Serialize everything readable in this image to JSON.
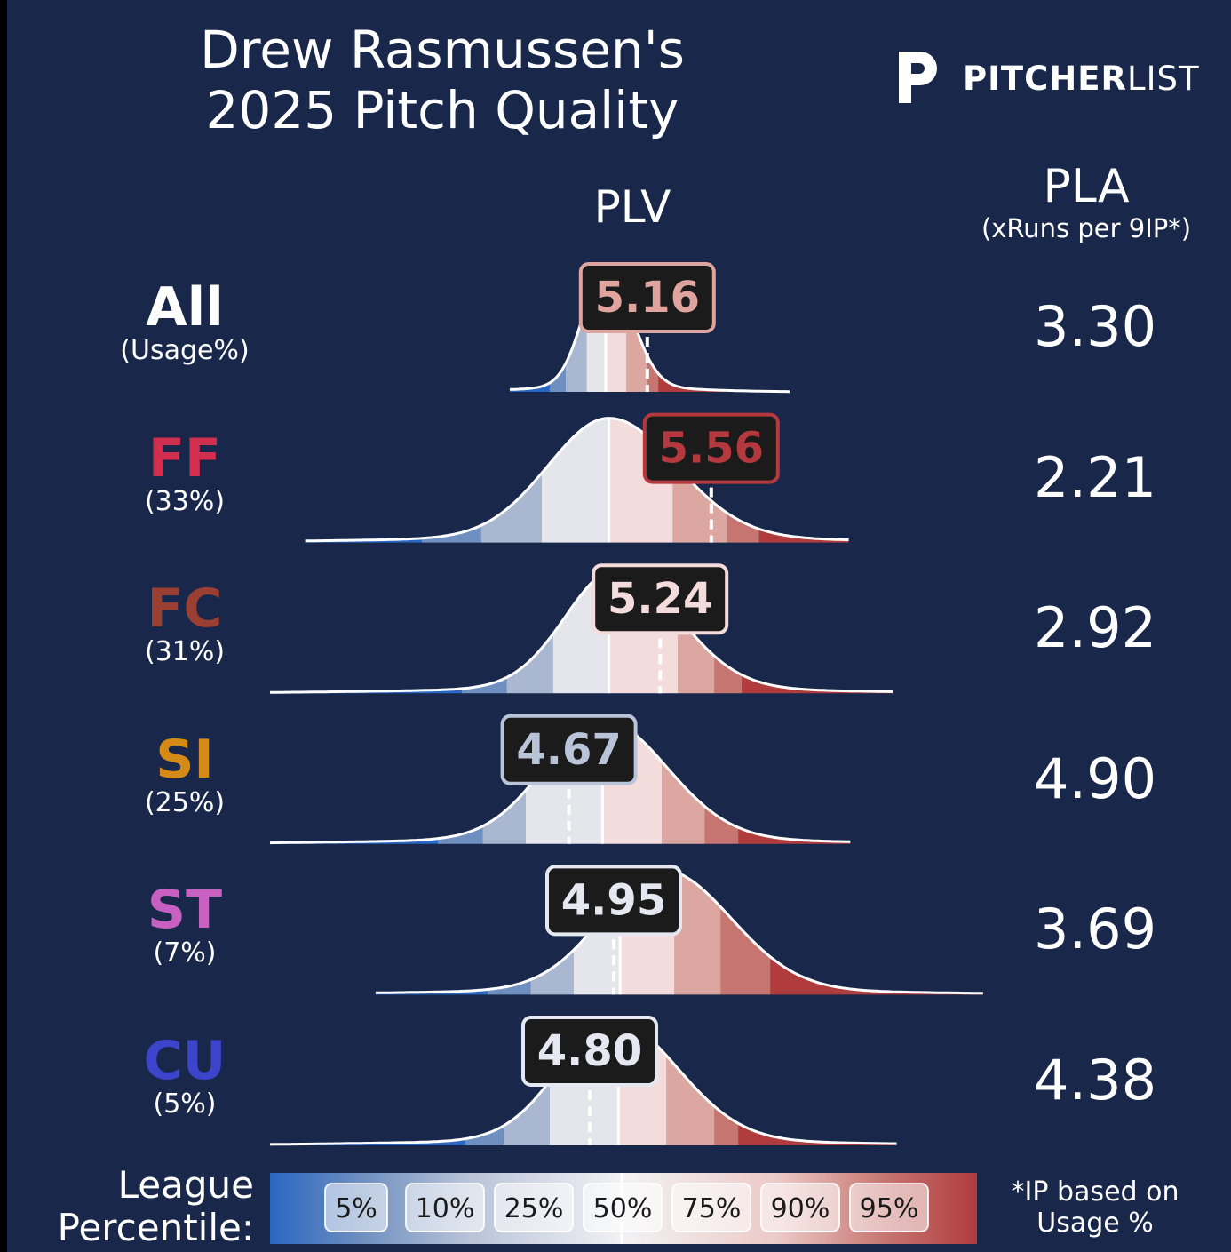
{
  "chart_data": {
    "type": "area",
    "title": "Drew Rasmussen's\n2025 Pitch Quality",
    "title_line1": "Drew Rasmussen's",
    "title_line2": "2025 Pitch Quality",
    "column_headers": {
      "plv": "PLV",
      "pla": "PLA",
      "pla_sub": "(xRuns per 9IP*)"
    },
    "rows": [
      {
        "pitch": "All",
        "usage": "(Usage%)",
        "plv": 5.16,
        "plv_label": "5.16",
        "pla": "3.30",
        "color": "#ffffff",
        "badge_color": "#e0a49f",
        "dist": {
          "start": 4.3,
          "end": 6.05,
          "mean": 4.9,
          "sd": 0.16,
          "peak_sd": 0.14,
          "pct": [
            4.55,
            4.65,
            4.78,
            4.9,
            5.03,
            5.16,
            5.23
          ]
        }
      },
      {
        "pitch": "FF",
        "usage": "(33%)",
        "plv": 5.56,
        "plv_label": "5.56",
        "pla": "2.21",
        "color": "#d22e4f",
        "badge_color": "#b4393f",
        "dist": {
          "start": 3.02,
          "end": 6.42,
          "mean": 4.92,
          "sd": 0.42,
          "peak_sd": 0.38,
          "pct": [
            3.75,
            4.12,
            4.5,
            4.92,
            5.32,
            5.66,
            5.86
          ]
        }
      },
      {
        "pitch": "FC",
        "usage": "(31%)",
        "plv": 5.24,
        "plv_label": "5.24",
        "pla": "2.92",
        "color": "#9a3f32",
        "badge_color": "#f5dcdc",
        "dist": {
          "start": 2.8,
          "end": 6.7,
          "mean": 4.97,
          "sd": 0.38,
          "peak_sd": 0.32,
          "pct": [
            4.0,
            4.28,
            4.57,
            4.92,
            5.35,
            5.58,
            5.75
          ]
        }
      },
      {
        "pitch": "SI",
        "usage": "(25%)",
        "plv": 4.67,
        "plv_label": "4.67",
        "pla": "4.90",
        "color": "#d58a17",
        "badge_color": "#b9c4d8",
        "dist": {
          "start": 2.8,
          "end": 6.43,
          "mean": 4.88,
          "sd": 0.4,
          "peak_sd": 0.36,
          "pct": [
            3.85,
            4.13,
            4.4,
            4.88,
            5.25,
            5.52,
            5.73
          ]
        }
      },
      {
        "pitch": "ST",
        "usage": "(7%)",
        "plv": 4.95,
        "plv_label": "4.95",
        "pla": "3.69",
        "color": "#c760c0",
        "badge_color": "#e5e8f0",
        "dist": {
          "start": 3.46,
          "end": 7.26,
          "mean": 5.26,
          "sd": 0.42,
          "peak_sd": 0.38,
          "pct": [
            4.16,
            4.43,
            4.7,
            4.99,
            5.33,
            5.62,
            5.93
          ]
        }
      },
      {
        "pitch": "CU",
        "usage": "(5%)",
        "plv": 4.8,
        "plv_label": "4.80",
        "pla": "4.38",
        "color": "#3c44cc",
        "badge_color": "#e5e8f0",
        "dist": {
          "start": 2.8,
          "end": 6.72,
          "mean": 4.95,
          "sd": 0.4,
          "peak_sd": 0.34,
          "pct": [
            4.02,
            4.26,
            4.55,
            4.98,
            5.28,
            5.58,
            5.73
          ]
        }
      }
    ],
    "legend": {
      "title_line1": "League",
      "title_line2": "Percentile:",
      "percentiles": [
        "5%",
        "10%",
        "25%",
        "50%",
        "75%",
        "90%",
        "95%"
      ]
    },
    "footnote_line1": "*IP based on",
    "footnote_line2": "Usage %",
    "brand": {
      "bold": "PITCHER",
      "light": "LIST"
    },
    "band_colors": [
      "#2a67c2",
      "#6f8fc0",
      "#a9b7d1",
      "#e4e6ec",
      "#f3dcdb",
      "#dca7a1",
      "#c67570",
      "#b13c3e"
    ]
  }
}
